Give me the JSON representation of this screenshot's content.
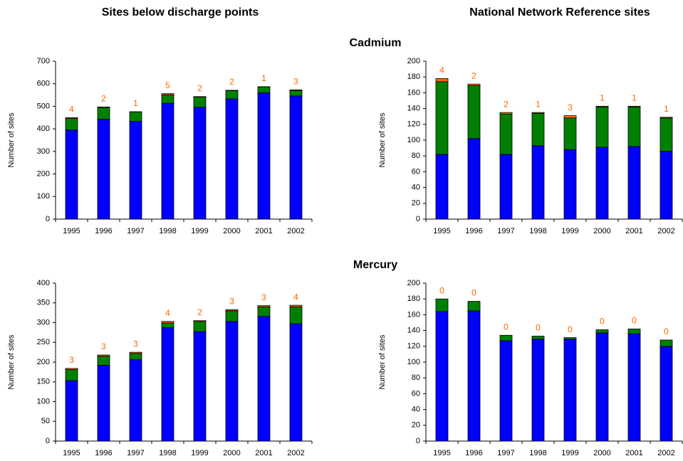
{
  "column_titles": [
    "Sites below discharge points",
    "National Network Reference sites"
  ],
  "row_titles": [
    "Cadmium",
    "Mercury"
  ],
  "chart_data": [
    {
      "type": "stacked_bar",
      "y_label": "Number of sites",
      "categories": [
        "1995",
        "1996",
        "1997",
        "1998",
        "1999",
        "2000",
        "2001",
        "2002"
      ],
      "ylim": [
        0,
        700
      ],
      "yticks": [
        0,
        100,
        200,
        300,
        400,
        500,
        600,
        700
      ],
      "series": [
        {
          "color": "#0000ff",
          "values": [
            395,
            443,
            433,
            513,
            496,
            533,
            560,
            546
          ]
        },
        {
          "color": "#008000",
          "values": [
            51,
            52,
            42,
            38,
            45,
            36,
            26,
            24
          ]
        },
        {
          "color": "#ff6600",
          "values": [
            4,
            2,
            1,
            5,
            2,
            2,
            1,
            3
          ]
        }
      ]
    },
    {
      "type": "stacked_bar",
      "y_label": "Number of sites",
      "categories": [
        "1995",
        "1996",
        "1997",
        "1998",
        "1999",
        "2000",
        "2001",
        "2002"
      ],
      "ylim": [
        0,
        200
      ],
      "yticks": [
        0,
        20,
        40,
        60,
        80,
        100,
        120,
        140,
        160,
        180,
        200
      ],
      "series": [
        {
          "color": "#0000ff",
          "values": [
            82,
            102,
            82,
            93,
            88,
            91,
            92,
            86
          ]
        },
        {
          "color": "#008000",
          "values": [
            92,
            67,
            51,
            41,
            40,
            51,
            50,
            42
          ]
        },
        {
          "color": "#ff6600",
          "values": [
            4,
            2,
            2,
            1,
            3,
            1,
            1,
            1
          ]
        }
      ]
    },
    {
      "type": "stacked_bar",
      "y_label": "Number of sites",
      "categories": [
        "1995",
        "1996",
        "1997",
        "1998",
        "1999",
        "2000",
        "2001",
        "2002"
      ],
      "ylim": [
        0,
        400
      ],
      "yticks": [
        0,
        50,
        100,
        150,
        200,
        250,
        300,
        350,
        400
      ],
      "series": [
        {
          "color": "#0000ff",
          "values": [
            153,
            192,
            206,
            287,
            277,
            303,
            316,
            297
          ]
        },
        {
          "color": "#008000",
          "values": [
            28,
            23,
            16,
            12,
            26,
            27,
            24,
            43
          ]
        },
        {
          "color": "#ff6600",
          "values": [
            3,
            3,
            3,
            4,
            2,
            3,
            3,
            4
          ]
        }
      ]
    },
    {
      "type": "stacked_bar",
      "y_label": "Number of sites",
      "categories": [
        "1995",
        "1996",
        "1997",
        "1998",
        "1999",
        "2000",
        "2001",
        "2002"
      ],
      "ylim": [
        0,
        200
      ],
      "yticks": [
        0,
        20,
        40,
        60,
        80,
        100,
        120,
        140,
        160,
        180,
        200
      ],
      "series": [
        {
          "color": "#0000ff",
          "values": [
            164,
            165,
            127,
            129,
            129,
            137,
            136,
            120
          ]
        },
        {
          "color": "#008000",
          "values": [
            16,
            12,
            7,
            4,
            2,
            4,
            6,
            8
          ]
        },
        {
          "color": "#ff6600",
          "values": [
            0,
            0,
            0,
            0,
            0,
            0,
            0,
            0
          ]
        }
      ]
    }
  ]
}
